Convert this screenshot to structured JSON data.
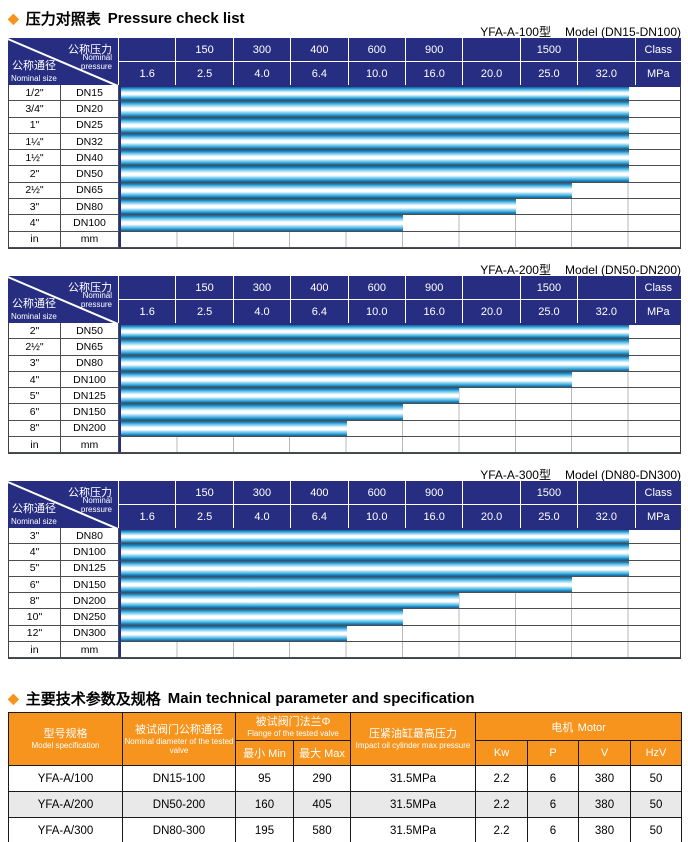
{
  "titles": {
    "diamond": "◆",
    "title1_zh": "压力对照表",
    "title1_en": "Pressure check list",
    "title2_zh": "主要技术参数及规格",
    "title2_en": "Main technical parameter and specification"
  },
  "colors": {
    "navy_header": "#272E82",
    "orange_header": "#F7941D",
    "bar_cyan": "#29ABE2",
    "shaded_row": "#E9E9EA"
  },
  "pressure_header": {
    "diagonal": {
      "top_zh": "公称压力",
      "top_en": "Nominal pressure",
      "bottom_zh": "公称通径",
      "bottom_en": "Nominal size"
    },
    "class_row": [
      "",
      "150",
      "300",
      "400",
      "600",
      "900",
      "",
      "1500",
      "",
      "Class"
    ],
    "mpa_row": [
      "1.6",
      "2.5",
      "4.0",
      "6.4",
      "10.0",
      "16.0",
      "20.0",
      "25.0",
      "32.0",
      "MPa"
    ]
  },
  "pressure_tables": [
    {
      "caption_model": "YFA-A-100型",
      "caption_range": "Model (DN15-DN100)",
      "rows": [
        {
          "in": "1/2\"",
          "mm": "DN15",
          "bar_cols": 9,
          "max_mpa": "32.0"
        },
        {
          "in": "3/4\"",
          "mm": "DN20",
          "bar_cols": 9,
          "max_mpa": "32.0"
        },
        {
          "in": "1\"",
          "mm": "DN25",
          "bar_cols": 9,
          "max_mpa": "32.0"
        },
        {
          "in": "1¼\"",
          "mm": "DN32",
          "bar_cols": 9,
          "max_mpa": "32.0"
        },
        {
          "in": "1½\"",
          "mm": "DN40",
          "bar_cols": 9,
          "max_mpa": "32.0"
        },
        {
          "in": "2\"",
          "mm": "DN50",
          "bar_cols": 9,
          "max_mpa": "32.0"
        },
        {
          "in": "2½\"",
          "mm": "DN65",
          "bar_cols": 8,
          "max_mpa": "25.0"
        },
        {
          "in": "3\"",
          "mm": "DN80",
          "bar_cols": 7,
          "max_mpa": "20.0"
        },
        {
          "in": "4\"",
          "mm": "DN100",
          "bar_cols": 5,
          "max_mpa": "10.0"
        },
        {
          "in": "in",
          "mm": "mm",
          "bar_cols": 0,
          "max_mpa": ""
        }
      ]
    },
    {
      "caption_model": "YFA-A-200型",
      "caption_range": "Model (DN50-DN200)",
      "rows": [
        {
          "in": "2\"",
          "mm": "DN50",
          "bar_cols": 9,
          "max_mpa": "32.0"
        },
        {
          "in": "2½\"",
          "mm": "DN65",
          "bar_cols": 9,
          "max_mpa": "32.0"
        },
        {
          "in": "3\"",
          "mm": "DN80",
          "bar_cols": 9,
          "max_mpa": "32.0"
        },
        {
          "in": "4\"",
          "mm": "DN100",
          "bar_cols": 8,
          "max_mpa": "25.0"
        },
        {
          "in": "5\"",
          "mm": "DN125",
          "bar_cols": 6,
          "max_mpa": "16.0"
        },
        {
          "in": "6\"",
          "mm": "DN150",
          "bar_cols": 5,
          "max_mpa": "10.0"
        },
        {
          "in": "8\"",
          "mm": "DN200",
          "bar_cols": 4,
          "max_mpa": "6.4"
        },
        {
          "in": "in",
          "mm": "mm",
          "bar_cols": 0,
          "max_mpa": ""
        }
      ]
    },
    {
      "caption_model": "YFA-A-300型",
      "caption_range": "Model (DN80-DN300)",
      "rows": [
        {
          "in": "3\"",
          "mm": "DN80",
          "bar_cols": 9,
          "max_mpa": "32.0"
        },
        {
          "in": "4\"",
          "mm": "DN100",
          "bar_cols": 9,
          "max_mpa": "32.0"
        },
        {
          "in": "5\"",
          "mm": "DN125",
          "bar_cols": 9,
          "max_mpa": "32.0"
        },
        {
          "in": "6\"",
          "mm": "DN150",
          "bar_cols": 8,
          "max_mpa": "25.0"
        },
        {
          "in": "8\"",
          "mm": "DN200",
          "bar_cols": 6,
          "max_mpa": "16.0"
        },
        {
          "in": "10\"",
          "mm": "DN250",
          "bar_cols": 5,
          "max_mpa": "10.0"
        },
        {
          "in": "12\"",
          "mm": "DN300",
          "bar_cols": 4,
          "max_mpa": "6.4"
        },
        {
          "in": "in",
          "mm": "mm",
          "bar_cols": 0,
          "max_mpa": ""
        }
      ]
    }
  ],
  "spec_table": {
    "header": {
      "model": {
        "zh": "型号规格",
        "en": "Model specification"
      },
      "diameter": {
        "zh": "被试阀门公称通径",
        "en": "Nominal diameter of the tested valve"
      },
      "flange": {
        "zh": "被试阀门法兰Φ",
        "en": "Flange of the tested valve"
      },
      "min": {
        "zh": "最小",
        "en": "Min"
      },
      "max": {
        "zh": "最大",
        "en": "Max"
      },
      "pressure": {
        "zh": "压紧油缸最高压力",
        "en": "Impact oil cylinder max pressure"
      },
      "motor": {
        "zh": "电机",
        "en": "Motor"
      },
      "motor_cols": [
        "Kw",
        "P",
        "V",
        "HzV"
      ]
    },
    "rows": [
      {
        "model": "YFA-A/100",
        "diameter": "DN15-100",
        "min": "95",
        "max": "290",
        "pressure": "31.5MPa",
        "kw": "2.2",
        "p": "6",
        "v": "380",
        "hz": "50",
        "shaded": false
      },
      {
        "model": "YFA-A/200",
        "diameter": "DN50-200",
        "min": "160",
        "max": "405",
        "pressure": "31.5MPa",
        "kw": "2.2",
        "p": "6",
        "v": "380",
        "hz": "50",
        "shaded": true
      },
      {
        "model": "YFA-A/300",
        "diameter": "DN80-300",
        "min": "195",
        "max": "580",
        "pressure": "31.5MPa",
        "kw": "2.2",
        "p": "6",
        "v": "380",
        "hz": "50",
        "shaded": false
      }
    ]
  }
}
